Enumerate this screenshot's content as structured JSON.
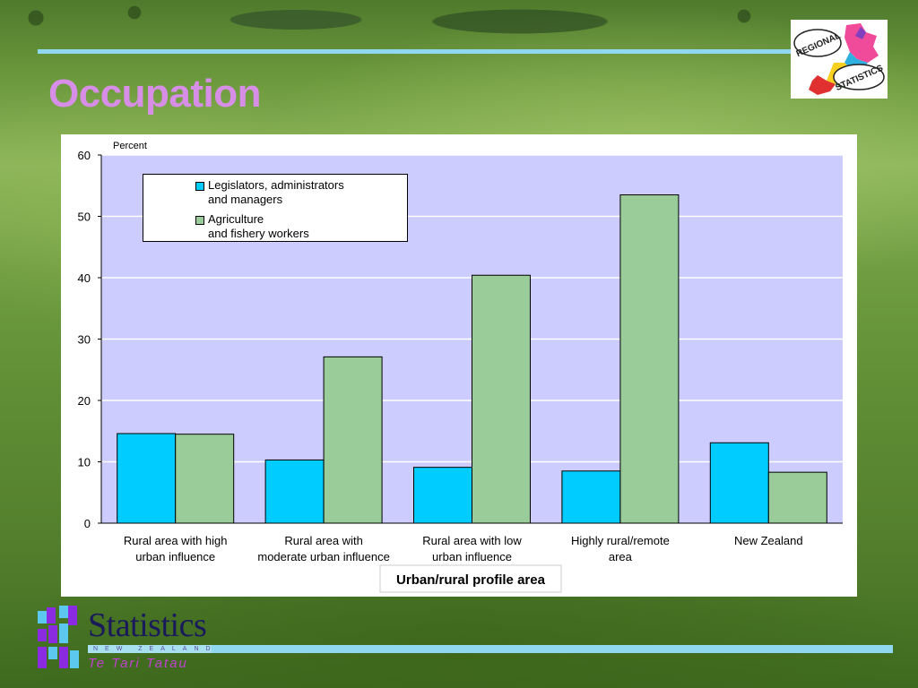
{
  "slide": {
    "title": "Occupation"
  },
  "logo": {
    "text_top": "REGIONAL",
    "text_bottom": "STATISTICS"
  },
  "footer": {
    "org_name": "Statistics",
    "org_country": "NEW ZEALAND",
    "org_maori": "Te Tari Tatau"
  },
  "colors": {
    "title": "#d68ee6",
    "plot_bg": "#ccccff",
    "series_1": "#00ccff",
    "series_2": "#99cc99",
    "accent_rule": "#8fd8f0"
  },
  "chart_data": {
    "type": "bar",
    "title": "",
    "ylabel": "Percent",
    "xlabel": "Urban/rural profile area",
    "ylim": [
      0,
      60
    ],
    "yticks": [
      0,
      10,
      20,
      30,
      40,
      50,
      60
    ],
    "grid": true,
    "legend_position": "top-left",
    "categories": [
      [
        "Rural area with high",
        "urban influence"
      ],
      [
        "Rural area with",
        "moderate urban influence"
      ],
      [
        "Rural area with low",
        "urban influence"
      ],
      [
        "Highly rural/remote",
        "area"
      ],
      [
        "New Zealand"
      ]
    ],
    "series": [
      {
        "name": [
          "Legislators, administrators",
          "and managers"
        ],
        "color": "#00ccff",
        "values": [
          14.6,
          10.3,
          9.1,
          8.5,
          13.1
        ]
      },
      {
        "name": [
          "Agriculture",
          "and fishery workers"
        ],
        "color": "#99cc99",
        "values": [
          14.5,
          27.1,
          40.4,
          53.5,
          8.3
        ]
      }
    ]
  }
}
